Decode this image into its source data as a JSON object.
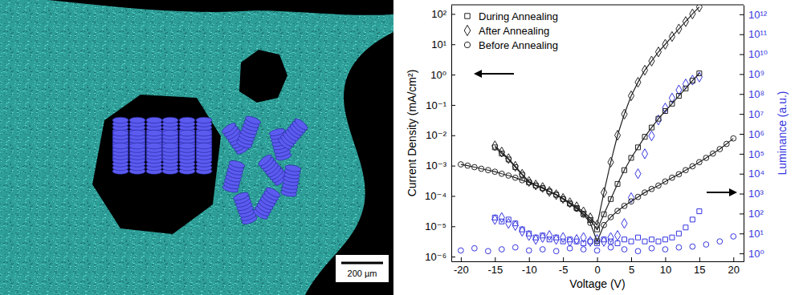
{
  "image": {
    "scale_bar": "200 µm"
  },
  "chart_data": {
    "type": "scatter",
    "x_label": "Voltage (V)",
    "y_label": "Current Density (mA/cm²)",
    "y2_label": "Luminance (a.u.)",
    "log": "y",
    "grid": false,
    "legend": "upper left",
    "xlim": [
      -21.4,
      21.5
    ],
    "xticks": [
      -20,
      -15,
      -10,
      -5,
      0,
      5,
      10,
      15,
      20
    ],
    "ylim": [
      7e-07,
      200
    ],
    "yticks": [
      {
        "value": 1e-06,
        "label": "10⁻⁶"
      },
      {
        "value": 1e-05,
        "label": "10⁻⁵"
      },
      {
        "value": 0.0001,
        "label": "10⁻⁴"
      },
      {
        "value": 0.001,
        "label": "10⁻³"
      },
      {
        "value": 0.01,
        "label": "10⁻²"
      },
      {
        "value": 0.1,
        "label": "10⁻¹"
      },
      {
        "value": 1,
        "label": "10⁰"
      },
      {
        "value": 10,
        "label": "10¹"
      },
      {
        "value": 100,
        "label": "10²"
      }
    ],
    "y2lim": [
      0.4,
      3000000000000.0
    ],
    "y2ticks": [
      {
        "value": 1,
        "label": "10⁰"
      },
      {
        "value": 10,
        "label": "10¹"
      },
      {
        "value": 100,
        "label": "10²"
      },
      {
        "value": 1000.0,
        "label": "10³"
      },
      {
        "value": 10000.0,
        "label": "10⁴"
      },
      {
        "value": 100000.0,
        "label": "10⁵"
      },
      {
        "value": 1000000.0,
        "label": "10⁶"
      },
      {
        "value": 10000000.0,
        "label": "10⁷"
      },
      {
        "value": 100000000.0,
        "label": "10⁸"
      },
      {
        "value": 1000000000.0,
        "label": "10⁹"
      },
      {
        "value": 10000000000.0,
        "label": "10¹⁰"
      },
      {
        "value": 100000000000.0,
        "label": "10¹¹"
      },
      {
        "value": 1000000000000.0,
        "label": "10¹²"
      }
    ],
    "series": [
      {
        "name": "During Annealing",
        "color": "#222222",
        "marker": "square",
        "line_style": "solid",
        "x": [
          -15,
          -14,
          -13,
          -12,
          -11,
          -10,
          -9,
          -8,
          -7,
          -6,
          -5,
          -4,
          -3,
          -2,
          -1,
          0,
          1,
          2,
          3,
          4,
          5,
          6,
          7,
          8,
          9,
          10,
          11,
          12,
          13,
          14,
          15
        ],
        "values": [
          0.004,
          0.0025,
          0.0016,
          0.00089,
          0.0005,
          0.00028,
          0.00022,
          0.00018,
          0.00014,
          0.00011,
          7.9e-05,
          5.6e-05,
          4e-05,
          2.6e-05,
          1.6e-05,
          7.9e-06,
          2.5e-05,
          7.9e-05,
          0.00025,
          0.00071,
          0.0018,
          0.004,
          0.0089,
          0.018,
          0.035,
          0.063,
          0.11,
          0.2,
          0.35,
          0.63,
          1.1
        ]
      },
      {
        "name": "After Annealing",
        "color": "#222222",
        "marker": "diamond",
        "line_style": "solid",
        "x": [
          -15,
          -14,
          -13,
          -12,
          -11,
          -10,
          -9,
          -8,
          -7,
          -6,
          -5,
          -4,
          -3,
          -2,
          -1,
          0,
          1,
          2,
          3,
          4,
          5,
          6,
          7,
          8,
          9,
          10,
          11,
          12,
          13,
          14,
          15
        ],
        "values": [
          0.0045,
          0.0028,
          0.0017,
          0.00095,
          0.00052,
          0.0003,
          0.00023,
          0.00019,
          0.00014,
          0.00011,
          8.3e-05,
          6e-05,
          4.4e-05,
          3e-05,
          1.9e-05,
          1.1e-05,
          0.00013,
          0.0013,
          0.01,
          0.05,
          0.2,
          0.56,
          1.4,
          2.8,
          5.6,
          10,
          18,
          32,
          56,
          100,
          170
        ]
      },
      {
        "name": "Before Annealing",
        "color": "#222222",
        "marker": "circle",
        "line_style": "solid",
        "x": [
          -20,
          -19,
          -18,
          -17,
          -16,
          -15,
          -14,
          -13,
          -12,
          -11,
          -10,
          -9,
          -8,
          -7,
          -6,
          -5,
          -4,
          -3,
          -2,
          -1,
          0,
          1,
          2,
          3,
          4,
          5,
          6,
          7,
          8,
          9,
          10,
          11,
          12,
          13,
          14,
          15,
          16,
          17,
          18,
          19,
          20
        ],
        "values": [
          0.0011,
          0.001,
          0.00089,
          0.00079,
          0.00071,
          0.00063,
          0.00054,
          0.00047,
          0.0004,
          0.00033,
          0.00028,
          0.00022,
          0.00018,
          0.00014,
          0.00011,
          7.9e-05,
          5.6e-05,
          3.8e-05,
          2.4e-05,
          1.3e-05,
          3.2e-06,
          1.1e-05,
          2e-05,
          3.2e-05,
          4.7e-05,
          6.6e-05,
          9.3e-05,
          0.00013,
          0.00017,
          0.00022,
          0.0003,
          0.0004,
          0.00052,
          0.00071,
          0.00095,
          0.0013,
          0.0018,
          0.0025,
          0.0035,
          0.0052,
          0.0079
        ]
      },
      {
        "name": "During Annealing",
        "color": "#3535e0",
        "marker": "square",
        "axis": "y2",
        "x": [
          -15,
          -14,
          -13,
          -12,
          -11,
          -10,
          -9,
          -8,
          -7,
          -6,
          -5,
          -4,
          -3,
          -2,
          -1,
          0,
          1,
          2,
          3,
          4,
          5,
          6,
          7,
          8,
          9,
          10,
          11,
          12,
          13,
          14,
          15
        ],
        "values": [
          63,
          40,
          50,
          32,
          16,
          10,
          6.3,
          7.9,
          5.0,
          6.3,
          4.0,
          5.0,
          4.0,
          3.2,
          4.0,
          3.2,
          5.0,
          4.0,
          3.2,
          5.0,
          4.0,
          6.3,
          4.0,
          5.0,
          4.0,
          5.0,
          6.3,
          10,
          20,
          50,
          130
        ]
      },
      {
        "name": "After Annealing",
        "color": "#3535e0",
        "marker": "diamond",
        "axis": "y2",
        "x": [
          -15,
          -14,
          -13,
          -12,
          -11,
          -10,
          -9,
          -8,
          -7,
          -6,
          -5,
          -4,
          -3,
          -2,
          -1,
          0,
          1,
          2,
          3,
          4,
          5,
          6,
          7,
          8,
          9,
          10,
          11,
          12,
          13,
          14,
          15
        ],
        "values": [
          50,
          63,
          32,
          25,
          13,
          7.9,
          5.0,
          6.3,
          7.9,
          5.0,
          6.3,
          4.0,
          5.0,
          6.3,
          4.0,
          5.0,
          4.0,
          6.3,
          7.9,
          32,
          630,
          10000.0,
          100000.0,
          790000.0,
          5000000.0,
          20000000.0,
          63000000.0,
          160000000.0,
          320000000.0,
          500000000.0,
          710000000.0
        ]
      },
      {
        "name": "Before Annealing",
        "color": "#3535e0",
        "marker": "circle",
        "axis": "y2",
        "x": [
          -20,
          -18,
          -16,
          -14,
          -12,
          -10,
          -8,
          -6,
          -4,
          -2,
          0,
          2,
          4,
          6,
          8,
          10,
          12,
          14,
          16,
          18,
          20
        ],
        "values": [
          1.4,
          1.8,
          1.3,
          1.6,
          2.0,
          1.4,
          1.6,
          1.3,
          1.8,
          1.6,
          1.4,
          2.0,
          1.6,
          1.3,
          1.8,
          1.6,
          2.0,
          2.2,
          2.8,
          4.0,
          7.1
        ]
      }
    ]
  }
}
